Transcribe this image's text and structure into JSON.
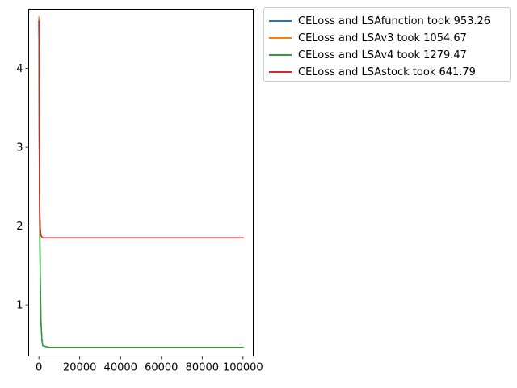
{
  "chart_data": {
    "type": "line",
    "title": "",
    "xlabel": "",
    "ylabel": "",
    "xlim": [
      -5000,
      105000
    ],
    "ylim": [
      0.35,
      4.75
    ],
    "xticks": [
      0,
      20000,
      40000,
      60000,
      80000,
      100000
    ],
    "xtick_labels": [
      "0",
      "20000",
      "40000",
      "60000",
      "80000",
      "100000"
    ],
    "yticks": [
      1,
      2,
      3,
      4
    ],
    "ytick_labels": [
      "1",
      "2",
      "3",
      "4"
    ],
    "grid": false,
    "legend_position": "outside top-right",
    "series": [
      {
        "name": "CELoss and LSAfunction took 953.26",
        "color": "#1f77b4",
        "x": [
          0,
          100,
          200,
          400,
          700,
          1000,
          1500,
          2000,
          5000,
          20000,
          50000,
          100000
        ],
        "y": [
          4.6,
          4.0,
          3.0,
          2.0,
          1.3,
          0.8,
          0.55,
          0.48,
          0.46,
          0.46,
          0.46,
          0.46
        ]
      },
      {
        "name": "CELoss and LSAv3 took 1054.67",
        "color": "#ff7f0e",
        "x": [
          0,
          100,
          200,
          400,
          700,
          1000,
          1500,
          2000,
          5000,
          20000,
          50000,
          100000
        ],
        "y": [
          4.65,
          4.2,
          3.3,
          2.2,
          1.95,
          1.88,
          1.86,
          1.85,
          1.85,
          1.85,
          1.85,
          1.85
        ]
      },
      {
        "name": "CELoss and LSAv4 took 1279.47",
        "color": "#2ca02c",
        "x": [
          0,
          100,
          200,
          400,
          700,
          1000,
          1500,
          2000,
          5000,
          20000,
          50000,
          100000
        ],
        "y": [
          4.6,
          4.0,
          3.0,
          2.0,
          1.3,
          0.8,
          0.55,
          0.48,
          0.46,
          0.46,
          0.46,
          0.46
        ]
      },
      {
        "name": "CELoss and LSAstock took 641.79",
        "color": "#d62728",
        "x": [
          0,
          100,
          200,
          400,
          700,
          1000,
          1500,
          2000,
          5000,
          20000,
          50000,
          100000
        ],
        "y": [
          4.6,
          4.1,
          3.2,
          2.2,
          1.95,
          1.88,
          1.86,
          1.85,
          1.85,
          1.85,
          1.85,
          1.85
        ]
      }
    ]
  }
}
